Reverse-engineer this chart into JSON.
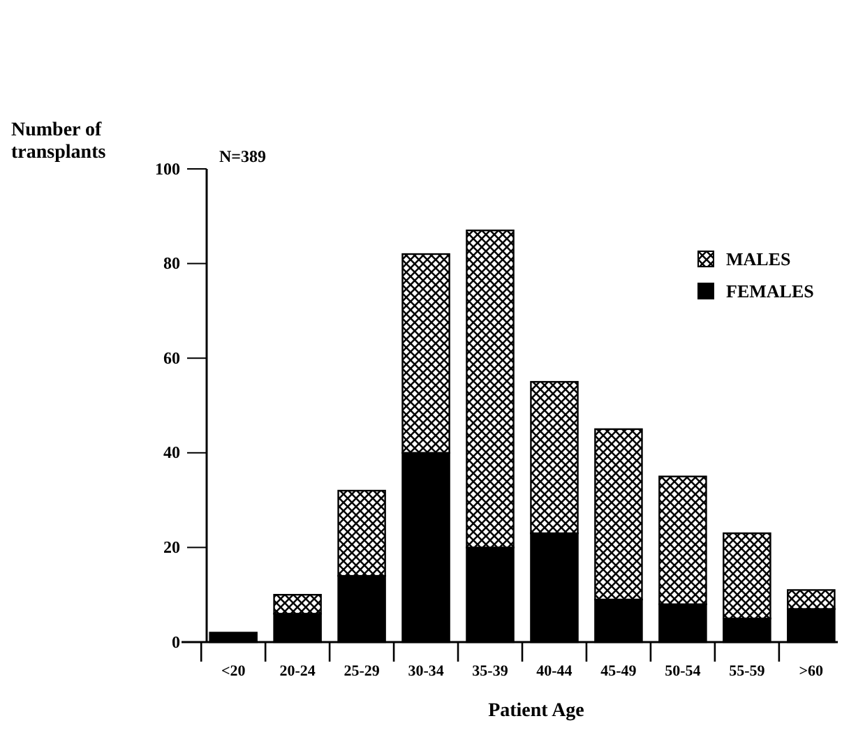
{
  "chart_data": {
    "type": "bar",
    "stacked": true,
    "xlabel": "Patient Age",
    "ylabel": "Number of transplants",
    "annotations": [
      "N=389"
    ],
    "categories": [
      "<20",
      "20-24",
      "25-29",
      "30-34",
      "35-39",
      "40-44",
      "45-49",
      "50-54",
      "55-59",
      ">60"
    ],
    "series": [
      {
        "name": "FEMALES",
        "color": "#000000",
        "values": [
          2,
          6,
          14,
          40,
          20,
          23,
          9,
          8,
          5,
          7
        ]
      },
      {
        "name": "MALES",
        "color": "#000000",
        "values": [
          0,
          4,
          18,
          42,
          67,
          32,
          36,
          27,
          18,
          4
        ]
      }
    ],
    "ylim": [
      0,
      100
    ],
    "yticks": [
      0,
      20,
      40,
      60,
      80,
      100
    ],
    "legend": "top right"
  }
}
